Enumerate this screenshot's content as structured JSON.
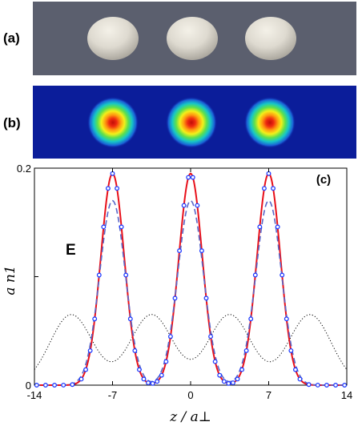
{
  "panels": {
    "a": {
      "label": "(a)",
      "background": "#5b5f6e",
      "sphere_color": "#e6e2d6",
      "n_spheres": 3
    },
    "b": {
      "label": "(b)",
      "background": "#0b1d9a",
      "n_blobs": 3
    },
    "c": {
      "label": "(c)",
      "annotation": "E"
    }
  },
  "chart_data": {
    "type": "line",
    "xlabel": "z / a⊥",
    "ylabel": "a n1",
    "xlim": [
      -14,
      14
    ],
    "ylim": [
      0,
      0.2
    ],
    "x_ticks": [
      "-14",
      "-7",
      "0",
      "7",
      "14"
    ],
    "y_ticks": [
      "0",
      "0.2"
    ],
    "peaks_at": [
      -7,
      0,
      7
    ],
    "series": [
      {
        "style": "solid",
        "color": "#e8101a",
        "peak": 0.195,
        "sigma": 1.05
      },
      {
        "style": "dashed",
        "color": "#5a67c8",
        "peak": 0.17,
        "sigma": 1.15
      },
      {
        "style": "circles",
        "color": "#1f3cff",
        "peak": 0.195,
        "sigma": 1.05,
        "x": [
          -13.8,
          -13,
          -12.2,
          -11.4,
          -10.6,
          -9.8,
          -9.4,
          -9,
          -8.6,
          -8.2,
          -7.8,
          -7.4,
          -7,
          -6.6,
          -6.2,
          -5.8,
          -5.4,
          -5,
          -4.6,
          -4.2,
          -3.8,
          -3.4,
          -3,
          -2.6,
          -2.2,
          -1.8,
          -1.4,
          -1,
          -0.6,
          -0.2,
          0.2,
          0.6,
          1,
          1.4,
          1.8,
          2.2,
          2.6,
          3,
          3.4,
          3.8,
          4.2,
          4.6,
          5,
          5.4,
          5.8,
          6.2,
          6.6,
          7,
          7.4,
          7.8,
          8.2,
          8.6,
          9,
          9.4,
          9.8,
          10.6,
          11.4,
          12.2,
          13,
          13.8
        ]
      },
      {
        "style": "dotted",
        "color": "#000000",
        "peak": 0.065,
        "sigma": 1.9,
        "centers": [
          -10.7,
          -3.5,
          3.5,
          10.7
        ]
      }
    ]
  }
}
